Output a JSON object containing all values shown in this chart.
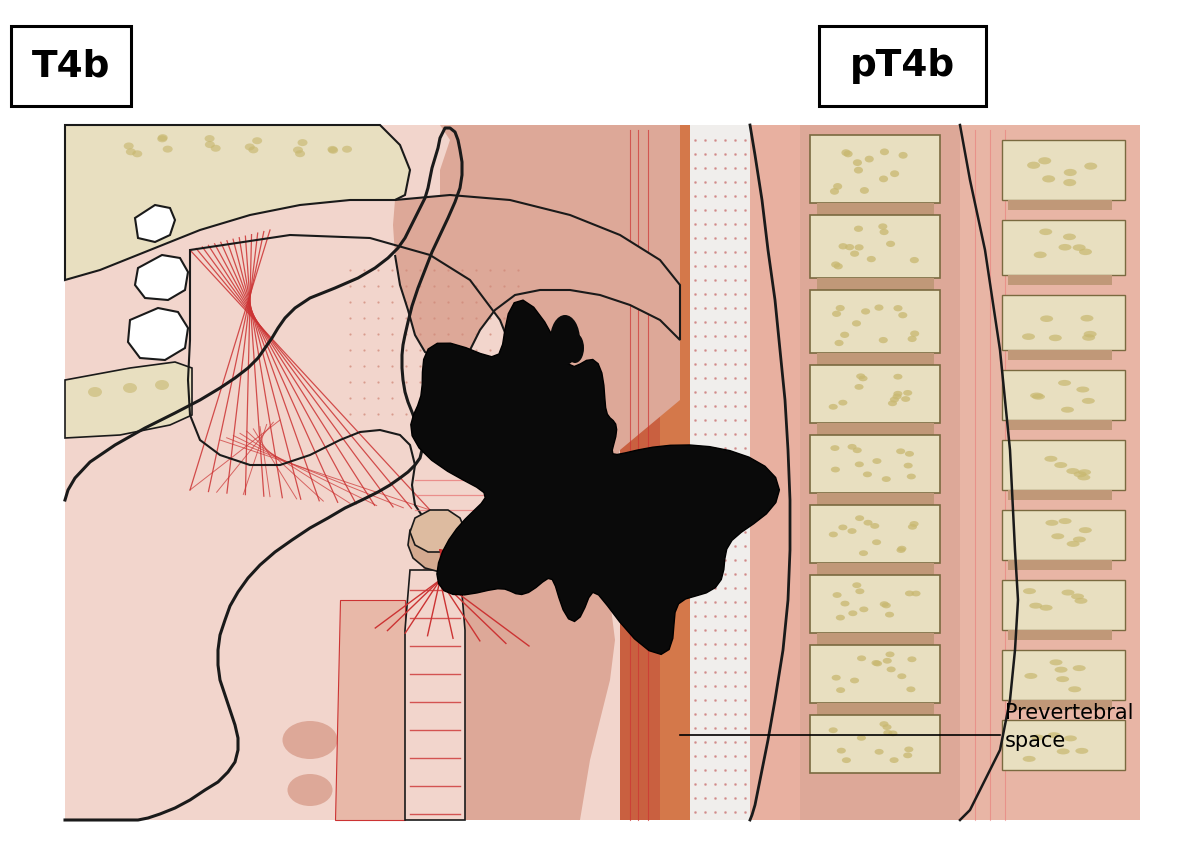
{
  "title_left": "T4b",
  "title_right": "pT4b",
  "label_text": "Prevertebral\nspace",
  "bg_color": "#ffffff",
  "skin_light": "#f2d5cc",
  "skin_medium": "#dda898",
  "skin_dark": "#c47b68",
  "bone_color": "#e8dfc0",
  "bone_spots": "#c8b870",
  "tumor_color": "#0a0a0a",
  "outline_color": "#1a1a1a",
  "red_line": "#cc3333",
  "red_medium": "#e87070",
  "orange_stripe": "#d4824a",
  "white_space": "#f0eeec",
  "disc_color": "#c09070",
  "soft_tissue": "#e8b8a8",
  "pharynx_dark": "#c97060"
}
